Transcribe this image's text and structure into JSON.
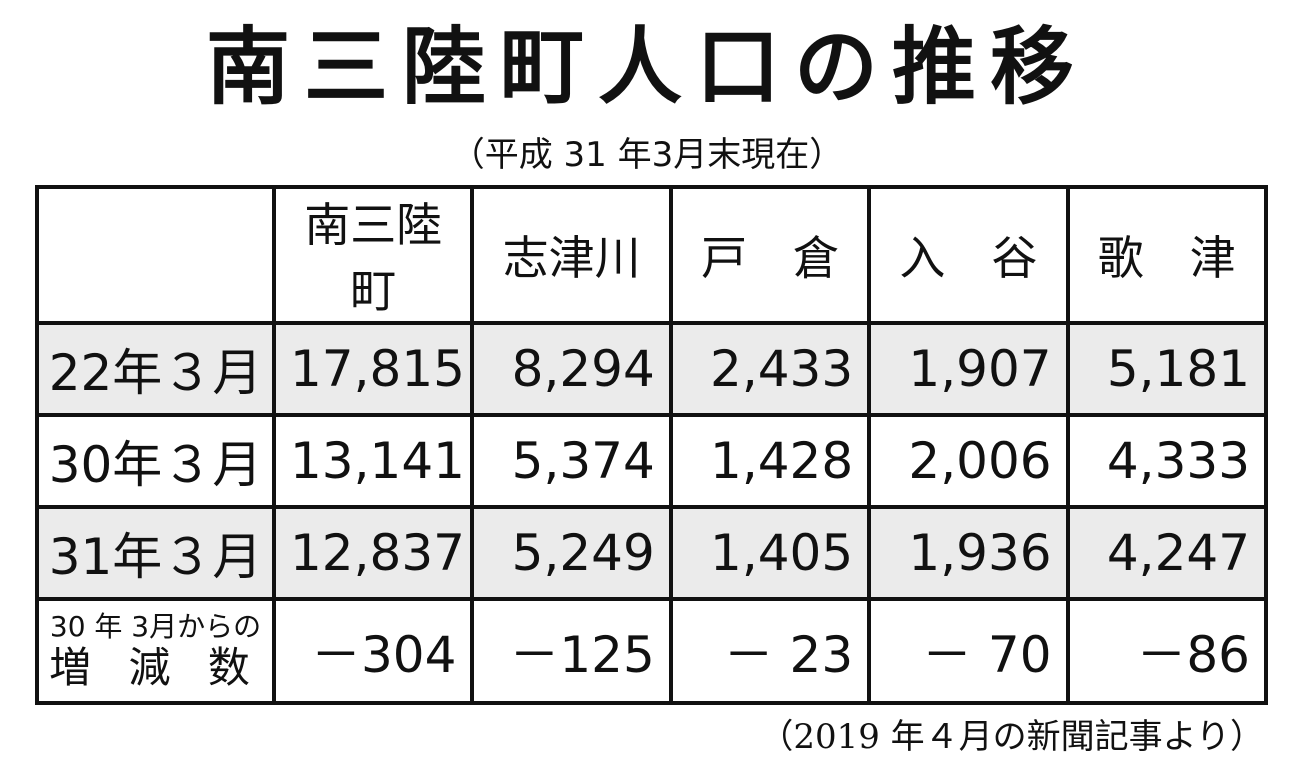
{
  "header": {
    "title": "南三陸町人口の推移",
    "subtitle": "（平成 31 年3月末現在）"
  },
  "table": {
    "columns": [
      "南三陸町",
      "志津川",
      "戸　倉",
      "入　谷",
      "歌　津"
    ],
    "rows": [
      {
        "label": [
          "22年３月"
        ],
        "cells": [
          "17,815",
          "8,294",
          "2,433",
          "1,907",
          "5,181"
        ]
      },
      {
        "label": [
          "30年３月"
        ],
        "cells": [
          "13,141",
          "5,374",
          "1,428",
          "2,006",
          "4,333"
        ]
      },
      {
        "label": [
          "31年３月"
        ],
        "cells": [
          "12,837",
          "5,249",
          "1,405",
          "1,936",
          "4,247"
        ]
      },
      {
        "label": [
          "30 年 3月からの",
          "増 減 数"
        ],
        "cells": [
          "－304",
          "－125",
          "－ 23",
          "－ 70",
          "－86"
        ]
      }
    ]
  },
  "footer": {
    "source": "（2019 年４月の新聞記事より）"
  }
}
